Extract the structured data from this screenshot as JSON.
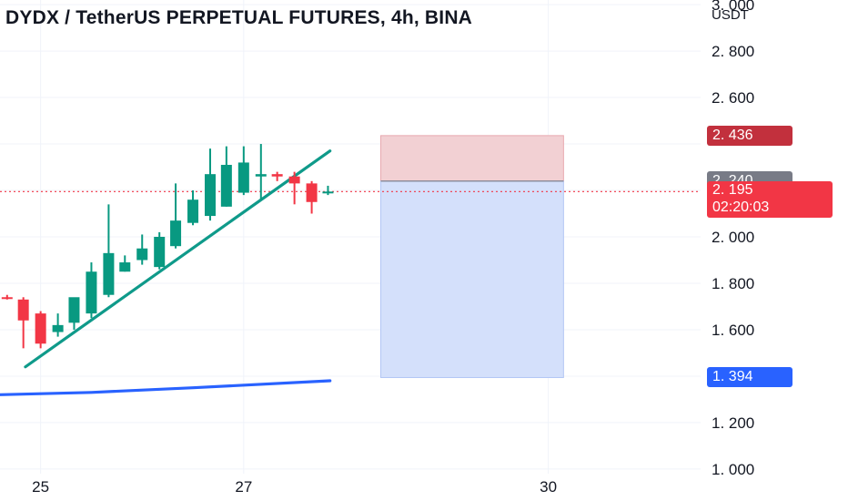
{
  "title": "DYDX / TetherUS PERPETUAL FUTURES, 4h, BINA",
  "unit": "USDT",
  "colors": {
    "up": "#089981",
    "down": "#f23645",
    "trendline": "#0f9a8a",
    "ma": "#2962ff",
    "stop_zone": "#f2d0d3",
    "target_zone": "#d4e0fb",
    "entry_badge": "#787b86",
    "stop_badge": "#c2303d",
    "target_badge": "#2962ff",
    "current_badge": "#f23645"
  },
  "price_badges": {
    "stop": "2. 436",
    "entry": "2. 240",
    "current": "2. 195",
    "countdown": "02:20:03",
    "target": "1. 394"
  },
  "chart_data": {
    "type": "candlestick",
    "title": "DYDX / TetherUS PERPETUAL FUTURES, 4h, BINA",
    "ylabel": "USDT",
    "ylim": [
      0.98,
      3.02
    ],
    "y_ticks": [
      {
        "value": 3.0,
        "label": "3. 000"
      },
      {
        "value": 2.8,
        "label": "2. 800"
      },
      {
        "value": 2.6,
        "label": "2. 600"
      },
      {
        "value": 2.0,
        "label": "2. 000"
      },
      {
        "value": 1.8,
        "label": "1. 800"
      },
      {
        "value": 1.6,
        "label": "1. 600"
      },
      {
        "value": 1.2,
        "label": "1. 200"
      },
      {
        "value": 1.0,
        "label": "1. 000"
      }
    ],
    "x_unit": "day_of_month",
    "xlim": [
      24.6,
      31.5
    ],
    "x_ticks": [
      {
        "value": 25,
        "label": "25"
      },
      {
        "value": 27,
        "label": "27"
      },
      {
        "value": 30,
        "label": "30"
      }
    ],
    "candles": [
      {
        "t": 24.5,
        "o": 1.74,
        "h": 1.75,
        "l": 1.73,
        "c": 1.74
      },
      {
        "t": 24.67,
        "o": 1.74,
        "h": 1.75,
        "l": 1.73,
        "c": 1.735
      },
      {
        "t": 24.83,
        "o": 1.73,
        "h": 1.74,
        "l": 1.52,
        "c": 1.64
      },
      {
        "t": 25.0,
        "o": 1.67,
        "h": 1.68,
        "l": 1.52,
        "c": 1.54
      },
      {
        "t": 25.17,
        "o": 1.59,
        "h": 1.67,
        "l": 1.57,
        "c": 1.62
      },
      {
        "t": 25.33,
        "o": 1.63,
        "h": 1.72,
        "l": 1.6,
        "c": 1.74
      },
      {
        "t": 25.5,
        "o": 1.67,
        "h": 1.89,
        "l": 1.65,
        "c": 1.85
      },
      {
        "t": 25.67,
        "o": 1.75,
        "h": 2.14,
        "l": 1.74,
        "c": 1.93
      },
      {
        "t": 25.83,
        "o": 1.85,
        "h": 1.92,
        "l": 1.85,
        "c": 1.89
      },
      {
        "t": 26.0,
        "o": 1.9,
        "h": 2.01,
        "l": 1.88,
        "c": 1.95
      },
      {
        "t": 26.17,
        "o": 1.87,
        "h": 2.02,
        "l": 1.86,
        "c": 2.0
      },
      {
        "t": 26.33,
        "o": 1.96,
        "h": 2.23,
        "l": 1.95,
        "c": 2.07
      },
      {
        "t": 26.5,
        "o": 2.06,
        "h": 2.2,
        "l": 2.05,
        "c": 2.16
      },
      {
        "t": 26.67,
        "o": 2.09,
        "h": 2.38,
        "l": 2.07,
        "c": 2.27
      },
      {
        "t": 26.83,
        "o": 2.13,
        "h": 2.39,
        "l": 2.13,
        "c": 2.31
      },
      {
        "t": 27.0,
        "o": 2.19,
        "h": 2.39,
        "l": 2.18,
        "c": 2.32
      },
      {
        "t": 27.17,
        "o": 2.26,
        "h": 2.4,
        "l": 2.16,
        "c": 2.27
      },
      {
        "t": 27.33,
        "o": 2.27,
        "h": 2.28,
        "l": 2.24,
        "c": 2.26
      },
      {
        "t": 27.5,
        "o": 2.26,
        "h": 2.28,
        "l": 2.14,
        "c": 2.23
      },
      {
        "t": 27.67,
        "o": 2.23,
        "h": 2.24,
        "l": 2.1,
        "c": 2.15
      },
      {
        "t": 27.83,
        "o": 2.19,
        "h": 2.22,
        "l": 2.18,
        "c": 2.195
      }
    ],
    "trendline": {
      "x": [
        24.85,
        27.85
      ],
      "y": [
        1.44,
        2.37
      ]
    },
    "moving_average": {
      "x": [
        24.6,
        25.5,
        26.5,
        27.85
      ],
      "y": [
        1.32,
        1.33,
        1.35,
        1.38
      ]
    },
    "position": {
      "x_start": 28.35,
      "x_end": 30.15,
      "stop": 2.436,
      "entry": 2.24,
      "target": 1.394
    },
    "current_price": 2.195
  }
}
